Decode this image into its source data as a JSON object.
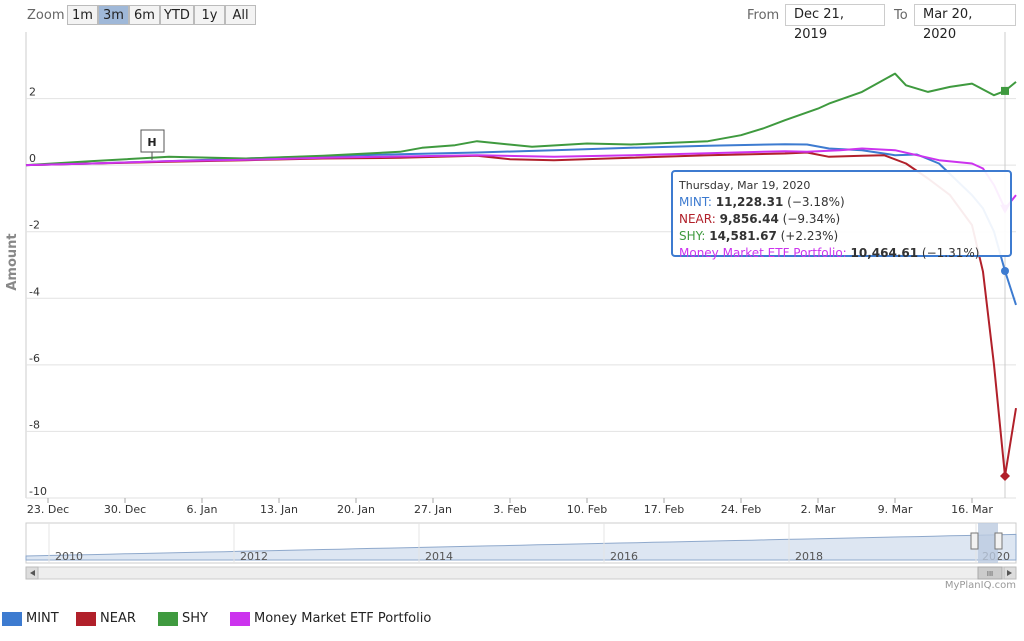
{
  "zoom": {
    "label": "Zoom",
    "buttons": [
      {
        "label": "1m",
        "active": false
      },
      {
        "label": "3m",
        "active": true
      },
      {
        "label": "6m",
        "active": false
      },
      {
        "label": "YTD",
        "active": false
      },
      {
        "label": "1y",
        "active": false
      },
      {
        "label": "All",
        "active": false
      }
    ]
  },
  "range": {
    "from_label": "From",
    "from_value": "Dec 21, 2019",
    "to_label": "To",
    "to_value": "Mar 20, 2020"
  },
  "tooltip": {
    "date": "Thursday, Mar 19, 2020",
    "rows": [
      {
        "name": "MINT",
        "value": "11,228.31",
        "change": "(−3.18%)",
        "color": "#3d7bd0"
      },
      {
        "name": "NEAR",
        "value": "9,856.44",
        "change": "(−9.34%)",
        "color": "#b1202a"
      },
      {
        "name": "SHY",
        "value": "14,581.67",
        "change": "(+2.23%)",
        "color": "#3f9a3f"
      },
      {
        "name": "Money Market ETF Portfolio",
        "value": "10,464.61",
        "change": "(−1.31%)",
        "color": "#cc33ee"
      }
    ]
  },
  "flag": {
    "label": "H"
  },
  "navigator": {
    "years": [
      "2010",
      "2012",
      "2014",
      "2016",
      "2018",
      "2020"
    ],
    "scroll_grip": "III"
  },
  "credit": "MyPlanIQ.com",
  "chart_data": {
    "type": "line",
    "ylabel": "Amount",
    "ylim": [
      -10,
      4
    ],
    "yticks": [
      -10,
      -8,
      -6,
      -4,
      -2,
      0,
      2
    ],
    "xlim": [
      "2019-12-21",
      "2020-03-20"
    ],
    "xtick_labels": [
      "23. Dec",
      "30. Dec",
      "6. Jan",
      "13. Jan",
      "20. Jan",
      "27. Jan",
      "3. Feb",
      "10. Feb",
      "17. Feb",
      "24. Feb",
      "2. Mar",
      "9. Mar",
      "16. Mar"
    ],
    "xtick_dates": [
      "2019-12-23",
      "2019-12-30",
      "2020-01-06",
      "2020-01-13",
      "2020-01-20",
      "2020-01-27",
      "2020-02-03",
      "2020-02-10",
      "2020-02-17",
      "2020-02-24",
      "2020-03-02",
      "2020-03-09",
      "2020-03-16"
    ],
    "grid": true,
    "legend_position": "bottom",
    "series": [
      {
        "name": "MINT",
        "color": "#3d7bd0",
        "points": [
          [
            "2019-12-21",
            0
          ],
          [
            "2019-12-27",
            0.05
          ],
          [
            "2020-01-03",
            0.12
          ],
          [
            "2020-01-10",
            0.2
          ],
          [
            "2020-01-17",
            0.27
          ],
          [
            "2020-01-24",
            0.33
          ],
          [
            "2020-01-31",
            0.38
          ],
          [
            "2020-02-07",
            0.45
          ],
          [
            "2020-02-14",
            0.52
          ],
          [
            "2020-02-21",
            0.58
          ],
          [
            "2020-02-28",
            0.63
          ],
          [
            "2020-03-01",
            0.62
          ],
          [
            "2020-03-03",
            0.5
          ],
          [
            "2020-03-06",
            0.45
          ],
          [
            "2020-03-09",
            0.3
          ],
          [
            "2020-03-11",
            0.32
          ],
          [
            "2020-03-13",
            0.05
          ],
          [
            "2020-03-16",
            -0.9
          ],
          [
            "2020-03-17",
            -1.3
          ],
          [
            "2020-03-18",
            -2.0
          ],
          [
            "2020-03-19",
            -3.18
          ],
          [
            "2020-03-20",
            -4.2
          ]
        ]
      },
      {
        "name": "NEAR",
        "color": "#b1202a",
        "points": [
          [
            "2019-12-21",
            0
          ],
          [
            "2019-12-27",
            0.05
          ],
          [
            "2020-01-03",
            0.1
          ],
          [
            "2020-01-10",
            0.15
          ],
          [
            "2020-01-17",
            0.2
          ],
          [
            "2020-01-24",
            0.22
          ],
          [
            "2020-01-31",
            0.28
          ],
          [
            "2020-02-03",
            0.18
          ],
          [
            "2020-02-07",
            0.15
          ],
          [
            "2020-02-14",
            0.22
          ],
          [
            "2020-02-21",
            0.3
          ],
          [
            "2020-02-28",
            0.35
          ],
          [
            "2020-03-01",
            0.38
          ],
          [
            "2020-03-03",
            0.25
          ],
          [
            "2020-03-06",
            0.28
          ],
          [
            "2020-03-08",
            0.3
          ],
          [
            "2020-03-10",
            0.05
          ],
          [
            "2020-03-12",
            -0.4
          ],
          [
            "2020-03-14",
            -0.9
          ],
          [
            "2020-03-16",
            -1.8
          ],
          [
            "2020-03-17",
            -3.2
          ],
          [
            "2020-03-18",
            -6.0
          ],
          [
            "2020-03-19",
            -9.34
          ],
          [
            "2020-03-20",
            -7.3
          ]
        ]
      },
      {
        "name": "SHY",
        "color": "#3f9a3f",
        "points": [
          [
            "2019-12-21",
            0
          ],
          [
            "2019-12-27",
            0.12
          ],
          [
            "2020-01-03",
            0.25
          ],
          [
            "2020-01-10",
            0.2
          ],
          [
            "2020-01-17",
            0.28
          ],
          [
            "2020-01-24",
            0.4
          ],
          [
            "2020-01-26",
            0.52
          ],
          [
            "2020-01-29",
            0.6
          ],
          [
            "2020-01-31",
            0.72
          ],
          [
            "2020-02-05",
            0.55
          ],
          [
            "2020-02-10",
            0.65
          ],
          [
            "2020-02-14",
            0.62
          ],
          [
            "2020-02-21",
            0.72
          ],
          [
            "2020-02-24",
            0.9
          ],
          [
            "2020-02-26",
            1.1
          ],
          [
            "2020-02-28",
            1.35
          ],
          [
            "2020-03-02",
            1.7
          ],
          [
            "2020-03-03",
            1.85
          ],
          [
            "2020-03-06",
            2.2
          ],
          [
            "2020-03-09",
            2.75
          ],
          [
            "2020-03-10",
            2.4
          ],
          [
            "2020-03-12",
            2.2
          ],
          [
            "2020-03-14",
            2.35
          ],
          [
            "2020-03-16",
            2.45
          ],
          [
            "2020-03-18",
            2.1
          ],
          [
            "2020-03-19",
            2.23
          ],
          [
            "2020-03-20",
            2.5
          ]
        ]
      },
      {
        "name": "Money Market ETF Portfolio",
        "color": "#cc33ee",
        "points": [
          [
            "2019-12-21",
            0
          ],
          [
            "2019-12-27",
            0.05
          ],
          [
            "2020-01-03",
            0.12
          ],
          [
            "2020-01-10",
            0.16
          ],
          [
            "2020-01-17",
            0.22
          ],
          [
            "2020-01-24",
            0.26
          ],
          [
            "2020-01-31",
            0.3
          ],
          [
            "2020-02-07",
            0.25
          ],
          [
            "2020-02-14",
            0.3
          ],
          [
            "2020-02-21",
            0.36
          ],
          [
            "2020-02-28",
            0.42
          ],
          [
            "2020-03-01",
            0.4
          ],
          [
            "2020-03-04",
            0.45
          ],
          [
            "2020-03-06",
            0.5
          ],
          [
            "2020-03-09",
            0.45
          ],
          [
            "2020-03-11",
            0.3
          ],
          [
            "2020-03-13",
            0.15
          ],
          [
            "2020-03-16",
            0.05
          ],
          [
            "2020-03-17",
            -0.1
          ],
          [
            "2020-03-18",
            -0.6
          ],
          [
            "2020-03-19",
            -1.31
          ],
          [
            "2020-03-20",
            -0.9
          ]
        ]
      }
    ]
  }
}
